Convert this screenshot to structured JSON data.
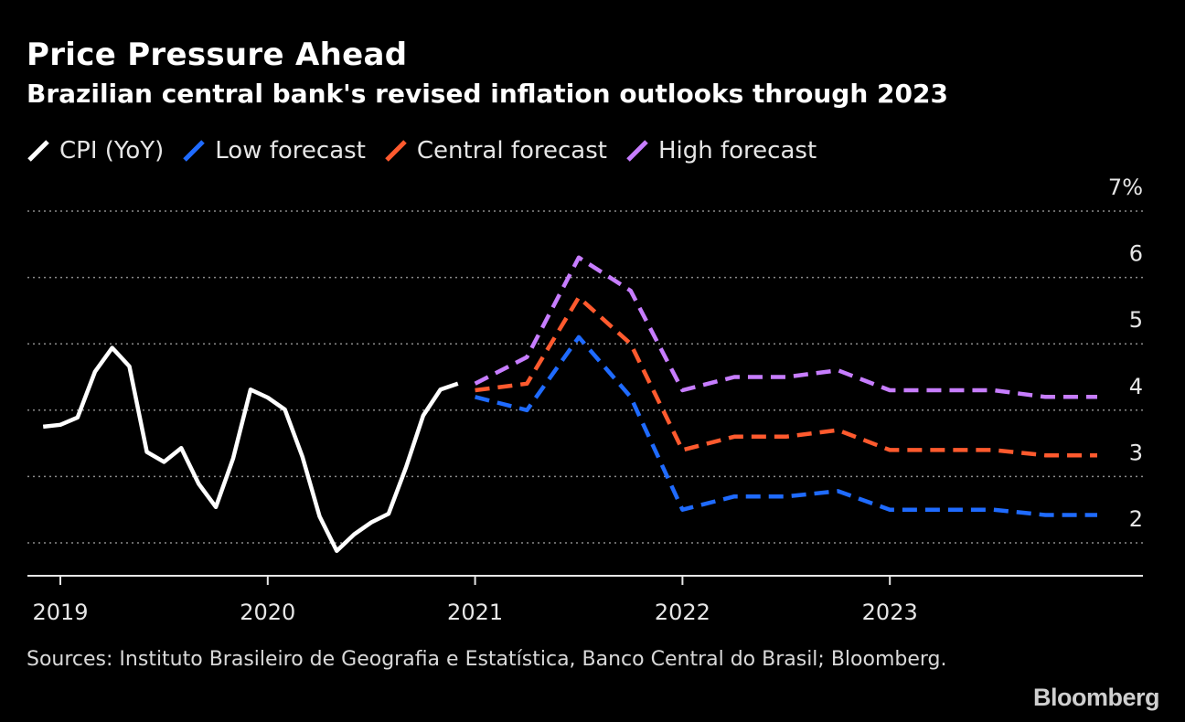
{
  "header": {
    "title": "Price Pressure Ahead",
    "subtitle": "Brazilian central bank's revised inflation outlooks through 2023"
  },
  "footer": {
    "source": "Sources: Instituto Brasileiro de Geografia e Estatística, Banco Central do Brasil; Bloomberg.",
    "logo": "Bloomberg"
  },
  "chart_data": {
    "type": "line",
    "title": "Price Pressure Ahead",
    "subtitle": "Brazilian central bank's revised inflation outlooks through 2023",
    "xlim": [
      2019,
      2024.25
    ],
    "ylim": [
      1.5,
      7
    ],
    "x_ticks": [
      {
        "value": 2019,
        "label": "2019"
      },
      {
        "value": 2020,
        "label": "2020"
      },
      {
        "value": 2021,
        "label": "2021"
      },
      {
        "value": 2022,
        "label": "2022"
      },
      {
        "value": 2023,
        "label": "2023"
      }
    ],
    "y_ticks": [
      {
        "value": 2,
        "label": "2"
      },
      {
        "value": 3,
        "label": "3"
      },
      {
        "value": 4,
        "label": "4"
      },
      {
        "value": 5,
        "label": "5"
      },
      {
        "value": 6,
        "label": "6"
      },
      {
        "value": 7,
        "label": "7%"
      }
    ],
    "grid": true,
    "legend_position": "top-left",
    "series": [
      {
        "name": "CPI (YoY)",
        "color": "#ffffff",
        "dashed": false,
        "points": [
          [
            2018.917,
            3.75
          ],
          [
            2019.0,
            3.78
          ],
          [
            2019.083,
            3.89
          ],
          [
            2019.167,
            4.58
          ],
          [
            2019.25,
            4.94
          ],
          [
            2019.333,
            4.66
          ],
          [
            2019.417,
            3.37
          ],
          [
            2019.5,
            3.22
          ],
          [
            2019.583,
            3.43
          ],
          [
            2019.667,
            2.89
          ],
          [
            2019.75,
            2.54
          ],
          [
            2019.833,
            3.27
          ],
          [
            2019.917,
            4.31
          ],
          [
            2020.0,
            4.19
          ],
          [
            2020.083,
            4.01
          ],
          [
            2020.167,
            3.3
          ],
          [
            2020.25,
            2.4
          ],
          [
            2020.333,
            1.88
          ],
          [
            2020.417,
            2.13
          ],
          [
            2020.5,
            2.31
          ],
          [
            2020.583,
            2.44
          ],
          [
            2020.667,
            3.14
          ],
          [
            2020.75,
            3.92
          ],
          [
            2020.833,
            4.31
          ],
          [
            2020.917,
            4.4
          ]
        ]
      },
      {
        "name": "Low forecast",
        "color": "#1f6bff",
        "dashed": true,
        "points": [
          [
            2021.0,
            4.2
          ],
          [
            2021.25,
            4.0
          ],
          [
            2021.5,
            5.1
          ],
          [
            2021.75,
            4.2
          ],
          [
            2022.0,
            2.5
          ],
          [
            2022.25,
            2.7
          ],
          [
            2022.5,
            2.7
          ],
          [
            2022.75,
            2.78
          ],
          [
            2023.0,
            2.5
          ],
          [
            2023.25,
            2.5
          ],
          [
            2023.5,
            2.5
          ],
          [
            2023.75,
            2.42
          ],
          [
            2024.0,
            2.42
          ]
        ]
      },
      {
        "name": "Central forecast",
        "color": "#ff5a2e",
        "dashed": true,
        "points": [
          [
            2021.0,
            4.3
          ],
          [
            2021.25,
            4.4
          ],
          [
            2021.5,
            5.7
          ],
          [
            2021.75,
            5.0
          ],
          [
            2022.0,
            3.4
          ],
          [
            2022.25,
            3.6
          ],
          [
            2022.5,
            3.6
          ],
          [
            2022.75,
            3.7
          ],
          [
            2023.0,
            3.4
          ],
          [
            2023.25,
            3.4
          ],
          [
            2023.5,
            3.4
          ],
          [
            2023.75,
            3.32
          ],
          [
            2024.0,
            3.32
          ]
        ]
      },
      {
        "name": "High forecast",
        "color": "#c77dff",
        "dashed": true,
        "points": [
          [
            2021.0,
            4.4
          ],
          [
            2021.25,
            4.8
          ],
          [
            2021.5,
            6.3
          ],
          [
            2021.75,
            5.8
          ],
          [
            2022.0,
            4.3
          ],
          [
            2022.25,
            4.5
          ],
          [
            2022.5,
            4.5
          ],
          [
            2022.75,
            4.6
          ],
          [
            2023.0,
            4.3
          ],
          [
            2023.25,
            4.3
          ],
          [
            2023.5,
            4.3
          ],
          [
            2023.75,
            4.2
          ],
          [
            2024.0,
            4.2
          ]
        ]
      }
    ]
  }
}
